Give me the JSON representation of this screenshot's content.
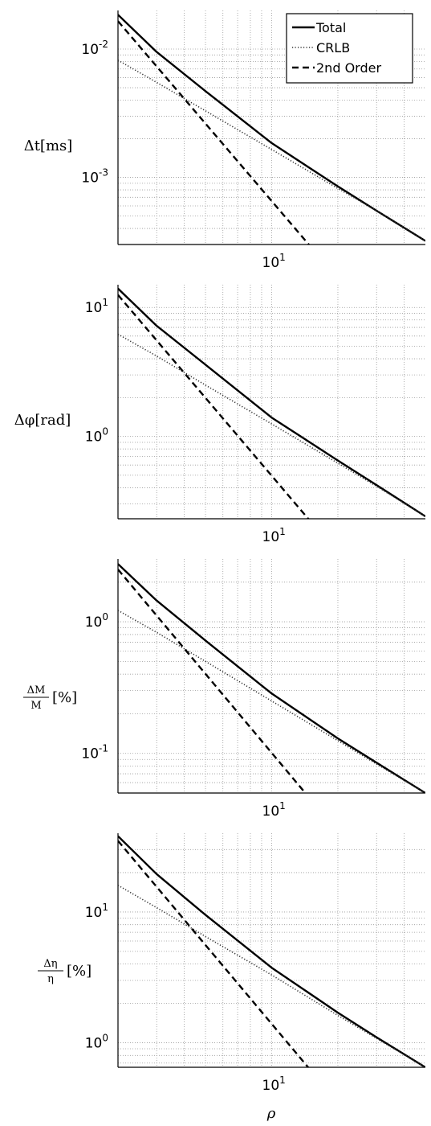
{
  "chart_data": [
    {
      "type": "line",
      "ylabel": "Δt[ms]",
      "x_scale": "log",
      "y_scale": "log",
      "xlim": [
        2,
        50
      ],
      "ylim": [
        0.0003,
        0.02
      ],
      "y_ticks": [
        {
          "base": "10",
          "exp": "-2",
          "value": 0.01
        },
        {
          "base": "10",
          "exp": "-3",
          "value": 0.001
        }
      ],
      "x_ticks": [
        {
          "base": "10",
          "exp": "1",
          "value": 10
        }
      ],
      "grid": true,
      "legend": {
        "placement": "top-right",
        "entries": [
          "Total",
          "CRLB",
          "2nd Order"
        ]
      },
      "series": [
        {
          "name": "Total",
          "style": "solid",
          "x": [
            2,
            3,
            5,
            10,
            20,
            30,
            50
          ],
          "y": [
            0.0185,
            0.0095,
            0.0047,
            0.00185,
            0.00085,
            0.00055,
            0.00032
          ]
        },
        {
          "name": "CRLB",
          "style": "dotted",
          "x": [
            2,
            3,
            5,
            10,
            20,
            30,
            50
          ],
          "y": [
            0.0082,
            0.0055,
            0.0033,
            0.00165,
            0.00082,
            0.00055,
            0.00032
          ]
        },
        {
          "name": "2nd Order",
          "style": "dashed",
          "x": [
            2,
            15
          ],
          "y": [
            0.0165,
            0.00029
          ]
        }
      ]
    },
    {
      "type": "line",
      "ylabel": "Δφ[rad]",
      "x_scale": "log",
      "y_scale": "log",
      "xlim": [
        2,
        50
      ],
      "ylim": [
        0.23,
        15
      ],
      "y_ticks": [
        {
          "base": "10",
          "exp": "1",
          "value": 10
        },
        {
          "base": "10",
          "exp": "0",
          "value": 1
        }
      ],
      "x_ticks": [
        {
          "base": "10",
          "exp": "1",
          "value": 10
        }
      ],
      "grid": true,
      "series": [
        {
          "name": "Total",
          "style": "solid",
          "x": [
            2,
            3,
            5,
            10,
            20,
            30,
            50
          ],
          "y": [
            14,
            7.2,
            3.6,
            1.4,
            0.65,
            0.42,
            0.24
          ]
        },
        {
          "name": "CRLB",
          "style": "dotted",
          "x": [
            2,
            3,
            5,
            10,
            20,
            30,
            50
          ],
          "y": [
            6.2,
            4.2,
            2.5,
            1.25,
            0.62,
            0.41,
            0.24
          ]
        },
        {
          "name": "2nd Order",
          "style": "dashed",
          "x": [
            2,
            15
          ],
          "y": [
            12.5,
            0.22
          ]
        }
      ]
    },
    {
      "type": "line",
      "ylabel": "ΔM/M [%]",
      "x_scale": "log",
      "y_scale": "log",
      "xlim": [
        2,
        50
      ],
      "ylim": [
        0.05,
        3
      ],
      "y_ticks": [
        {
          "base": "10",
          "exp": "0",
          "value": 1
        },
        {
          "base": "10",
          "exp": "-1",
          "value": 0.1
        }
      ],
      "x_ticks": [
        {
          "base": "10",
          "exp": "1",
          "value": 10
        }
      ],
      "grid": true,
      "series": [
        {
          "name": "Total",
          "style": "solid",
          "x": [
            2,
            3,
            5,
            10,
            20,
            30,
            50
          ],
          "y": [
            2.75,
            1.45,
            0.72,
            0.285,
            0.13,
            0.085,
            0.05
          ]
        },
        {
          "name": "CRLB",
          "style": "dotted",
          "x": [
            2,
            3,
            5,
            10,
            20,
            30,
            50
          ],
          "y": [
            1.22,
            0.83,
            0.5,
            0.25,
            0.125,
            0.083,
            0.05
          ]
        },
        {
          "name": "2nd Order",
          "style": "dashed",
          "x": [
            2,
            15
          ],
          "y": [
            2.5,
            0.045
          ]
        }
      ]
    },
    {
      "type": "line",
      "ylabel": "Δη/η [%]",
      "x_scale": "log",
      "y_scale": "log",
      "xlim": [
        2,
        50
      ],
      "ylim": [
        0.65,
        40
      ],
      "y_ticks": [
        {
          "base": "10",
          "exp": "1",
          "value": 10
        },
        {
          "base": "10",
          "exp": "0",
          "value": 1
        }
      ],
      "x_ticks": [
        {
          "base": "10",
          "exp": "1",
          "value": 10
        }
      ],
      "xlabel": "ρ",
      "grid": true,
      "series": [
        {
          "name": "Total",
          "style": "solid",
          "x": [
            2,
            3,
            5,
            10,
            20,
            30,
            50
          ],
          "y": [
            38,
            19.5,
            9.5,
            3.75,
            1.7,
            1.1,
            0.65
          ]
        },
        {
          "name": "CRLB",
          "style": "dotted",
          "x": [
            2,
            3,
            5,
            10,
            20,
            30,
            50
          ],
          "y": [
            16,
            10.8,
            6.5,
            3.3,
            1.62,
            1.08,
            0.65
          ]
        },
        {
          "name": "2nd Order",
          "style": "dashed",
          "x": [
            2,
            15
          ],
          "y": [
            35,
            0.62
          ]
        }
      ]
    }
  ]
}
